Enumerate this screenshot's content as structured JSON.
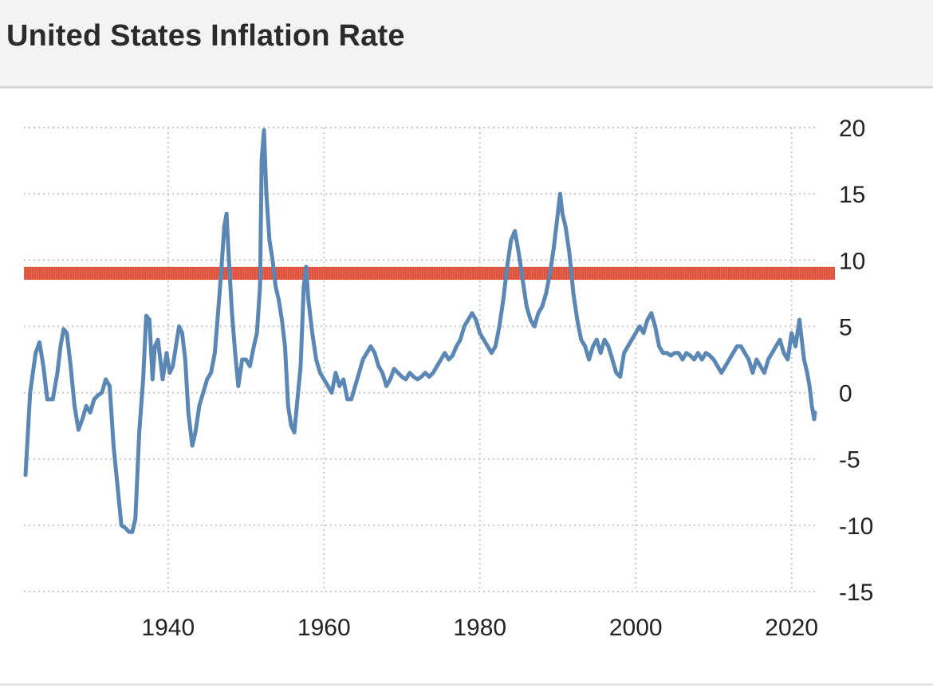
{
  "header": {
    "title": "United States Inflation Rate"
  },
  "colors": {
    "series": "#5b87b5",
    "reference_line": "#d9432b",
    "grid": "#c8c8c8",
    "tick_text": "#222222"
  },
  "chart_data": {
    "type": "line",
    "title": "United States Inflation Rate",
    "xlabel": "",
    "ylabel": "",
    "xlim": [
      1921.5,
      2023
    ],
    "ylim": [
      -15,
      20
    ],
    "x_ticks": [
      1940,
      1960,
      1980,
      2000,
      2020
    ],
    "y_ticks": [
      20,
      15,
      10,
      5,
      0,
      -5,
      -10,
      -15
    ],
    "y_axis_side": "right",
    "grid": true,
    "grid_style": "dotted",
    "legend": "none",
    "reference_line": {
      "y": 9.0
    },
    "series": [
      {
        "values": [
          [
            1921.7,
            -6.2
          ],
          [
            1922.3,
            0.0
          ],
          [
            1923,
            3.0
          ],
          [
            1923.5,
            3.8
          ],
          [
            1924,
            2.0
          ],
          [
            1924.5,
            -0.5
          ],
          [
            1925.2,
            -0.5
          ],
          [
            1925.8,
            1.5
          ],
          [
            1926.2,
            3.5
          ],
          [
            1926.6,
            4.8
          ],
          [
            1927,
            4.5
          ],
          [
            1927.5,
            2.0
          ],
          [
            1928,
            -1.0
          ],
          [
            1928.5,
            -2.8
          ],
          [
            1929,
            -2.0
          ],
          [
            1929.5,
            -1.0
          ],
          [
            1930,
            -1.5
          ],
          [
            1930.5,
            -0.5
          ],
          [
            1931,
            -0.2
          ],
          [
            1931.5,
            0.0
          ],
          [
            1932,
            1.0
          ],
          [
            1932.5,
            0.5
          ],
          [
            1933,
            -4.0
          ],
          [
            1933.5,
            -7.0
          ],
          [
            1934,
            -10.0
          ],
          [
            1934.5,
            -10.2
          ],
          [
            1935,
            -10.5
          ],
          [
            1935.4,
            -10.5
          ],
          [
            1935.8,
            -9.5
          ],
          [
            1936.3,
            -3.0
          ],
          [
            1936.8,
            1.0
          ],
          [
            1937.2,
            5.8
          ],
          [
            1937.6,
            5.5
          ],
          [
            1938,
            1.0
          ],
          [
            1938.3,
            3.5
          ],
          [
            1938.7,
            4.0
          ],
          [
            1939,
            2.5
          ],
          [
            1939.3,
            1.0
          ],
          [
            1939.8,
            3.0
          ],
          [
            1940.2,
            1.5
          ],
          [
            1940.6,
            2.0
          ],
          [
            1941,
            3.5
          ],
          [
            1941.4,
            5.0
          ],
          [
            1941.8,
            4.5
          ],
          [
            1942.2,
            2.5
          ],
          [
            1942.6,
            -1.5
          ],
          [
            1943.1,
            -4.0
          ],
          [
            1943.5,
            -3.0
          ],
          [
            1944,
            -1.0
          ],
          [
            1944.5,
            0.0
          ],
          [
            1945,
            1.0
          ],
          [
            1945.5,
            1.5
          ],
          [
            1946,
            3.0
          ],
          [
            1946.4,
            6.0
          ],
          [
            1946.8,
            9.0
          ],
          [
            1947.2,
            12.5
          ],
          [
            1947.5,
            13.5
          ],
          [
            1947.8,
            10.0
          ],
          [
            1948.2,
            6.0
          ],
          [
            1948.6,
            3.0
          ],
          [
            1949,
            0.5
          ],
          [
            1949.5,
            2.5
          ],
          [
            1950,
            2.5
          ],
          [
            1950.5,
            2.0
          ],
          [
            1951,
            3.5
          ],
          [
            1951.4,
            4.5
          ],
          [
            1951.8,
            8.0
          ],
          [
            1952,
            17.5
          ],
          [
            1952.3,
            19.8
          ],
          [
            1952.6,
            15.0
          ],
          [
            1953,
            11.5
          ],
          [
            1953.4,
            10.0
          ],
          [
            1953.8,
            8.0
          ],
          [
            1954.2,
            7.0
          ],
          [
            1954.6,
            5.5
          ],
          [
            1955,
            3.5
          ],
          [
            1955.4,
            -1.0
          ],
          [
            1955.8,
            -2.5
          ],
          [
            1956.2,
            -3.0
          ],
          [
            1956.6,
            -0.5
          ],
          [
            1957,
            2.0
          ],
          [
            1957.4,
            8.0
          ],
          [
            1957.7,
            9.5
          ],
          [
            1958,
            7.0
          ],
          [
            1958.5,
            4.5
          ],
          [
            1959,
            2.5
          ],
          [
            1959.5,
            1.5
          ],
          [
            1960,
            1.0
          ],
          [
            1960.5,
            0.5
          ],
          [
            1961,
            0.0
          ],
          [
            1961.5,
            1.5
          ],
          [
            1962,
            0.5
          ],
          [
            1962.5,
            1.0
          ],
          [
            1963,
            -0.5
          ],
          [
            1963.5,
            -0.5
          ],
          [
            1964,
            0.5
          ],
          [
            1964.5,
            1.5
          ],
          [
            1965,
            2.5
          ],
          [
            1965.5,
            3.0
          ],
          [
            1966,
            3.5
          ],
          [
            1966.5,
            3.0
          ],
          [
            1967,
            2.0
          ],
          [
            1967.5,
            1.5
          ],
          [
            1968,
            0.5
          ],
          [
            1968.5,
            1.0
          ],
          [
            1969,
            1.8
          ],
          [
            1969.5,
            1.5
          ],
          [
            1970,
            1.2
          ],
          [
            1970.5,
            1.0
          ],
          [
            1971,
            1.5
          ],
          [
            1971.5,
            1.2
          ],
          [
            1972,
            1.0
          ],
          [
            1972.5,
            1.2
          ],
          [
            1973,
            1.5
          ],
          [
            1973.5,
            1.2
          ],
          [
            1974,
            1.5
          ],
          [
            1974.5,
            2.0
          ],
          [
            1975,
            2.5
          ],
          [
            1975.5,
            3.0
          ],
          [
            1976,
            2.5
          ],
          [
            1976.5,
            2.8
          ],
          [
            1977,
            3.5
          ],
          [
            1977.5,
            4.0
          ],
          [
            1978,
            5.0
          ],
          [
            1978.5,
            5.5
          ],
          [
            1979,
            6.0
          ],
          [
            1979.5,
            5.5
          ],
          [
            1980,
            4.5
          ],
          [
            1980.5,
            4.0
          ],
          [
            1981,
            3.5
          ],
          [
            1981.5,
            3.0
          ],
          [
            1982,
            3.5
          ],
          [
            1982.5,
            5.0
          ],
          [
            1983,
            7.0
          ],
          [
            1983.5,
            9.5
          ],
          [
            1984,
            11.5
          ],
          [
            1984.5,
            12.2
          ],
          [
            1985,
            10.5
          ],
          [
            1985.5,
            8.5
          ],
          [
            1986,
            6.5
          ],
          [
            1986.5,
            5.5
          ],
          [
            1987,
            5.0
          ],
          [
            1987.5,
            6.0
          ],
          [
            1988,
            6.5
          ],
          [
            1988.5,
            7.5
          ],
          [
            1989,
            9.0
          ],
          [
            1989.5,
            11.0
          ],
          [
            1990,
            13.5
          ],
          [
            1990.3,
            15.0
          ],
          [
            1990.6,
            13.5
          ],
          [
            1991,
            12.5
          ],
          [
            1991.5,
            10.5
          ],
          [
            1992,
            7.5
          ],
          [
            1992.5,
            5.5
          ],
          [
            1993,
            4.0
          ],
          [
            1993.5,
            3.5
          ],
          [
            1994,
            2.5
          ],
          [
            1994.5,
            3.5
          ],
          [
            1995,
            4.0
          ],
          [
            1995.5,
            3.0
          ],
          [
            1996,
            4.0
          ],
          [
            1996.5,
            3.5
          ],
          [
            1997,
            2.5
          ],
          [
            1997.5,
            1.5
          ],
          [
            1998,
            1.2
          ],
          [
            1998.5,
            3.0
          ],
          [
            1999,
            3.5
          ],
          [
            1999.5,
            4.0
          ],
          [
            2000,
            4.5
          ],
          [
            2000.5,
            5.0
          ],
          [
            2001,
            4.5
          ],
          [
            2001.5,
            5.5
          ],
          [
            2002,
            6.0
          ],
          [
            2002.5,
            5.0
          ],
          [
            2003,
            3.5
          ],
          [
            2003.5,
            3.0
          ],
          [
            2004,
            3.0
          ],
          [
            2004.5,
            2.8
          ],
          [
            2005,
            3.0
          ],
          [
            2005.5,
            3.0
          ],
          [
            2006,
            2.5
          ],
          [
            2006.5,
            3.0
          ],
          [
            2007,
            2.8
          ],
          [
            2007.5,
            2.5
          ],
          [
            2008,
            3.0
          ],
          [
            2008.5,
            2.5
          ],
          [
            2009,
            3.0
          ],
          [
            2009.5,
            2.8
          ],
          [
            2010,
            2.5
          ],
          [
            2010.5,
            2.0
          ],
          [
            2011,
            1.5
          ],
          [
            2011.5,
            2.0
          ],
          [
            2012,
            2.5
          ],
          [
            2012.5,
            3.0
          ],
          [
            2013,
            3.5
          ],
          [
            2013.5,
            3.5
          ],
          [
            2014,
            3.0
          ],
          [
            2014.5,
            2.5
          ],
          [
            2015,
            1.5
          ],
          [
            2015.5,
            2.5
          ],
          [
            2016,
            2.0
          ],
          [
            2016.5,
            1.5
          ],
          [
            2017,
            2.5
          ],
          [
            2017.5,
            3.0
          ],
          [
            2018,
            3.5
          ],
          [
            2018.5,
            4.0
          ],
          [
            2019,
            3.0
          ],
          [
            2019.5,
            2.5
          ],
          [
            2020,
            4.5
          ],
          [
            2020.5,
            3.5
          ],
          [
            2021,
            5.5
          ],
          [
            2021.3,
            4.0
          ],
          [
            2021.6,
            2.5
          ],
          [
            2022,
            1.5
          ],
          [
            2022.3,
            0.5
          ],
          [
            2022.6,
            -1.0
          ],
          [
            2022.9,
            -2.0
          ],
          [
            2023,
            -1.5
          ]
        ]
      }
    ]
  }
}
